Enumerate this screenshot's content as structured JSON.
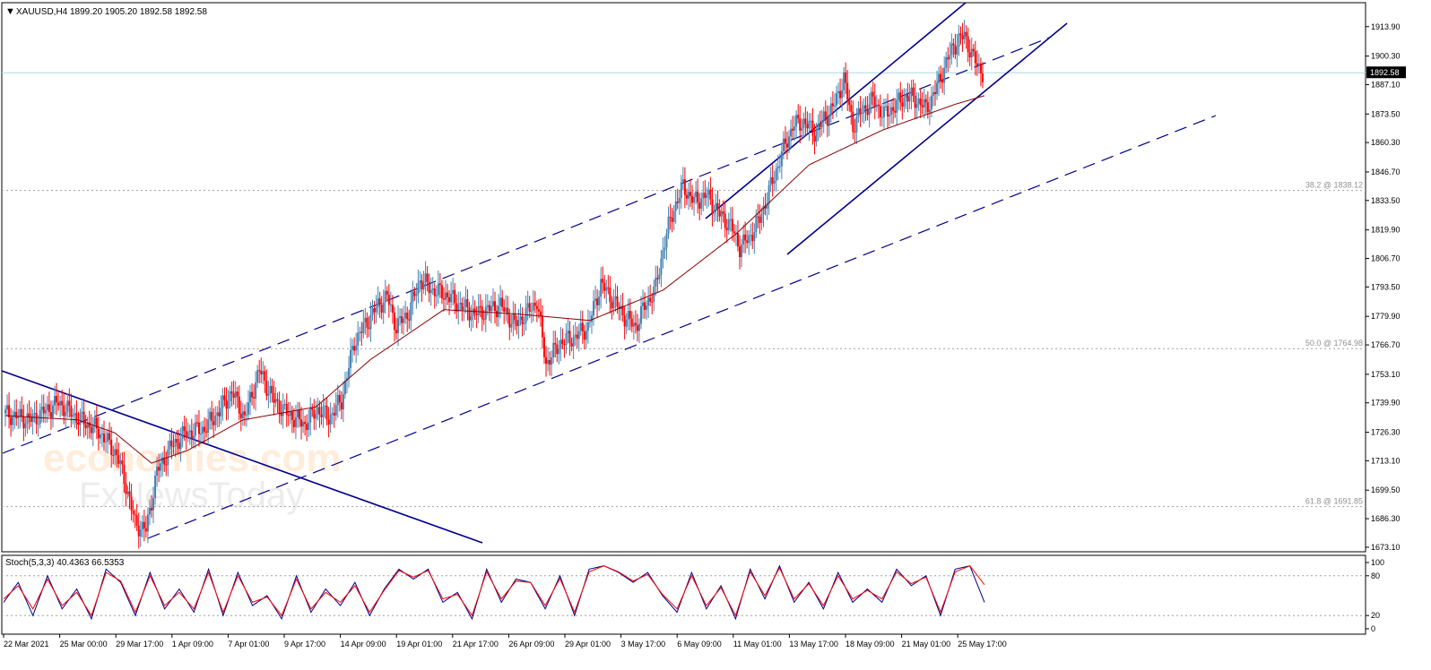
{
  "header": {
    "symbol": "XAUUSD,H4",
    "ohlc": "1899.20 1905.20 1892.58 1892.58"
  },
  "price_badge": "1892.58",
  "fib_labels": [
    "38.2 @ 1838.12",
    "50.0 @ 1764.98",
    "61.8 @ 1691.85"
  ],
  "watermark": {
    "line1": "economies.com",
    "line2": "FxNewsToday"
  },
  "colors": {
    "bull": "#4682b4",
    "bear": "#ff0000",
    "ma": "#8b0000",
    "trend": "#00008b",
    "price_line": "#add8e6",
    "grid": "#c0c0c0",
    "stoch_main": "#00008b",
    "stoch_signal": "#ff0000"
  },
  "chart_data": [
    {
      "type": "candlestick",
      "title": "XAUUSD,H4",
      "ylim": [
        1671,
        1925
      ],
      "yticks": [
        1913.9,
        1900.3,
        1887.1,
        1873.5,
        1860.3,
        1846.7,
        1833.5,
        1819.9,
        1806.7,
        1793.5,
        1779.9,
        1766.7,
        1753.1,
        1739.9,
        1726.3,
        1713.1,
        1699.5,
        1686.3,
        1673.1
      ],
      "xticks": [
        "22 Mar 2021",
        "25 Mar 00:00",
        "29 Mar 17:00",
        "1 Apr 09:00",
        "7 Apr 01:00",
        "9 Apr 17:00",
        "14 Apr 09:00",
        "19 Apr 01:00",
        "21 Apr 17:00",
        "26 Apr 09:00",
        "29 Apr 01:00",
        "3 May 17:00",
        "6 May 09:00",
        "11 May 01:00",
        "13 May 17:00",
        "18 May 09:00",
        "21 May 01:00",
        "25 May 17:00"
      ],
      "current_price": 1892.58,
      "fib_levels": [
        {
          "label": "38.2 @ 1838.12",
          "value": 1838.12
        },
        {
          "label": "50.0 @ 1764.98",
          "value": 1764.98
        },
        {
          "label": "61.8 @ 1691.85",
          "value": 1691.85
        }
      ],
      "price_path": [
        [
          0,
          1735
        ],
        [
          15,
          1732
        ],
        [
          30,
          1740
        ],
        [
          42,
          1732
        ],
        [
          52,
          1727
        ],
        [
          62,
          1716
        ],
        [
          67,
          1702
        ],
        [
          72,
          1684
        ],
        [
          78,
          1681
        ],
        [
          84,
          1708
        ],
        [
          92,
          1720
        ],
        [
          100,
          1726
        ],
        [
          110,
          1728
        ],
        [
          118,
          1736
        ],
        [
          125,
          1745
        ],
        [
          132,
          1733
        ],
        [
          140,
          1755
        ],
        [
          148,
          1741
        ],
        [
          155,
          1735
        ],
        [
          165,
          1730
        ],
        [
          172,
          1737
        ],
        [
          178,
          1733
        ],
        [
          185,
          1741
        ],
        [
          192,
          1768
        ],
        [
          198,
          1776
        ],
        [
          205,
          1785
        ],
        [
          210,
          1789
        ],
        [
          215,
          1775
        ],
        [
          222,
          1782
        ],
        [
          228,
          1797
        ],
        [
          235,
          1792
        ],
        [
          242,
          1790
        ],
        [
          250,
          1785
        ],
        [
          258,
          1781
        ],
        [
          265,
          1783
        ],
        [
          272,
          1785
        ],
        [
          280,
          1776
        ],
        [
          287,
          1782
        ],
        [
          292,
          1787
        ],
        [
          297,
          1758
        ],
        [
          305,
          1768
        ],
        [
          312,
          1770
        ],
        [
          320,
          1775
        ],
        [
          327,
          1795
        ],
        [
          334,
          1787
        ],
        [
          340,
          1780
        ],
        [
          346,
          1775
        ],
        [
          350,
          1783
        ],
        [
          357,
          1793
        ],
        [
          362,
          1815
        ],
        [
          367,
          1830
        ],
        [
          372,
          1840
        ],
        [
          378,
          1833
        ],
        [
          385,
          1836
        ],
        [
          392,
          1827
        ],
        [
          398,
          1822
        ],
        [
          403,
          1812
        ],
        [
          408,
          1816
        ],
        [
          414,
          1825
        ],
        [
          420,
          1840
        ],
        [
          426,
          1855
        ],
        [
          432,
          1868
        ],
        [
          438,
          1870
        ],
        [
          444,
          1865
        ],
        [
          450,
          1872
        ],
        [
          455,
          1878
        ],
        [
          460,
          1890
        ],
        [
          465,
          1868
        ],
        [
          470,
          1875
        ],
        [
          476,
          1880
        ],
        [
          482,
          1873
        ],
        [
          488,
          1877
        ],
        [
          494,
          1882
        ],
        [
          500,
          1880
        ],
        [
          505,
          1876
        ],
        [
          510,
          1884
        ],
        [
          515,
          1895
        ],
        [
          520,
          1905
        ],
        [
          526,
          1910
        ],
        [
          531,
          1899
        ],
        [
          536,
          1892.58
        ]
      ],
      "indicators": [
        {
          "type": "moving-average",
          "points": [
            [
              0,
              1734
            ],
            [
              40,
              1732
            ],
            [
              60,
              1726
            ],
            [
              80,
              1712
            ],
            [
              100,
              1718
            ],
            [
              130,
              1732
            ],
            [
              170,
              1738
            ],
            [
              200,
              1760
            ],
            [
              240,
              1783
            ],
            [
              280,
              1781
            ],
            [
              320,
              1778
            ],
            [
              360,
              1792
            ],
            [
              400,
              1818
            ],
            [
              440,
              1850
            ],
            [
              480,
              1866
            ],
            [
              520,
              1878
            ],
            [
              536,
              1882
            ]
          ]
        }
      ]
    },
    {
      "type": "line",
      "title": "Stoch(5,3,3) 40.4363 66.5353",
      "ylim": [
        0,
        100
      ],
      "yticks": [
        100,
        80,
        20,
        0
      ],
      "series": [
        {
          "name": "main",
          "values": [
            40,
            70,
            20,
            80,
            30,
            60,
            15,
            90,
            70,
            20,
            85,
            30,
            60,
            25,
            90,
            20,
            85,
            35,
            50,
            15,
            80,
            25,
            60,
            35,
            70,
            20,
            60,
            90,
            75,
            90,
            40,
            55,
            15,
            90,
            40,
            75,
            70,
            30,
            80,
            20,
            90,
            95,
            85,
            70,
            85,
            50,
            25,
            85,
            30,
            65,
            15,
            90,
            45,
            95,
            40,
            70,
            30,
            85,
            40,
            60,
            40,
            90,
            65,
            80,
            20,
            90,
            95,
            40
          ]
        },
        {
          "name": "signal",
          "values": [
            45,
            65,
            30,
            75,
            35,
            55,
            20,
            85,
            72,
            25,
            80,
            35,
            55,
            30,
            85,
            25,
            80,
            40,
            48,
            20,
            75,
            30,
            55,
            40,
            65,
            25,
            58,
            88,
            78,
            88,
            45,
            52,
            20,
            86,
            45,
            72,
            70,
            35,
            76,
            25,
            86,
            95,
            86,
            72,
            82,
            52,
            30,
            80,
            35,
            62,
            20,
            86,
            50,
            92,
            45,
            68,
            35,
            80,
            45,
            58,
            45,
            86,
            68,
            78,
            25,
            86,
            95,
            66.5353
          ]
        }
      ],
      "levels": [
        80,
        20
      ]
    }
  ]
}
